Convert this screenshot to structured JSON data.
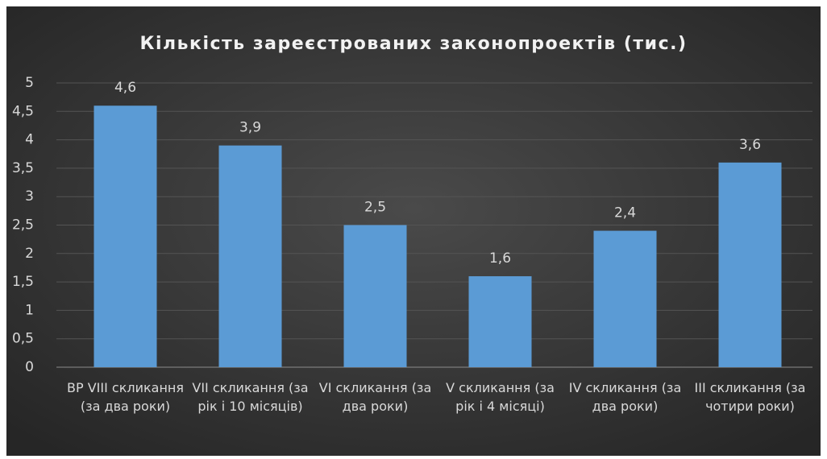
{
  "chart_data": {
    "type": "bar",
    "title": "Кількість зареєстрованих законопроектів (тис.)",
    "categories": [
      "ВР VIII скликання (за два роки)",
      "VII скликання (за рік і 10 місяців)",
      "VI скликання (за два роки)",
      "V скликання (за рік і 4 місяці)",
      "IV скликання (за два роки)",
      "III скликання (за чотири роки)"
    ],
    "values": [
      4.6,
      3.9,
      2.5,
      1.6,
      2.4,
      3.6
    ],
    "value_labels": [
      "4,6",
      "3,9",
      "2,5",
      "1,6",
      "2,4",
      "3,6"
    ],
    "color": "#5b9bd5",
    "ylim": [
      0,
      5
    ],
    "yticks": [
      0,
      {
        "value": 0.5,
        "label": "0,5"
      },
      1,
      {
        "value": 1.5,
        "label": "1,5"
      },
      2,
      {
        "value": 2.5,
        "label": "2,5"
      },
      3,
      {
        "value": 3.5,
        "label": "3,5"
      },
      4,
      {
        "value": 4.5,
        "label": "4,5"
      },
      5
    ],
    "grid": true
  }
}
